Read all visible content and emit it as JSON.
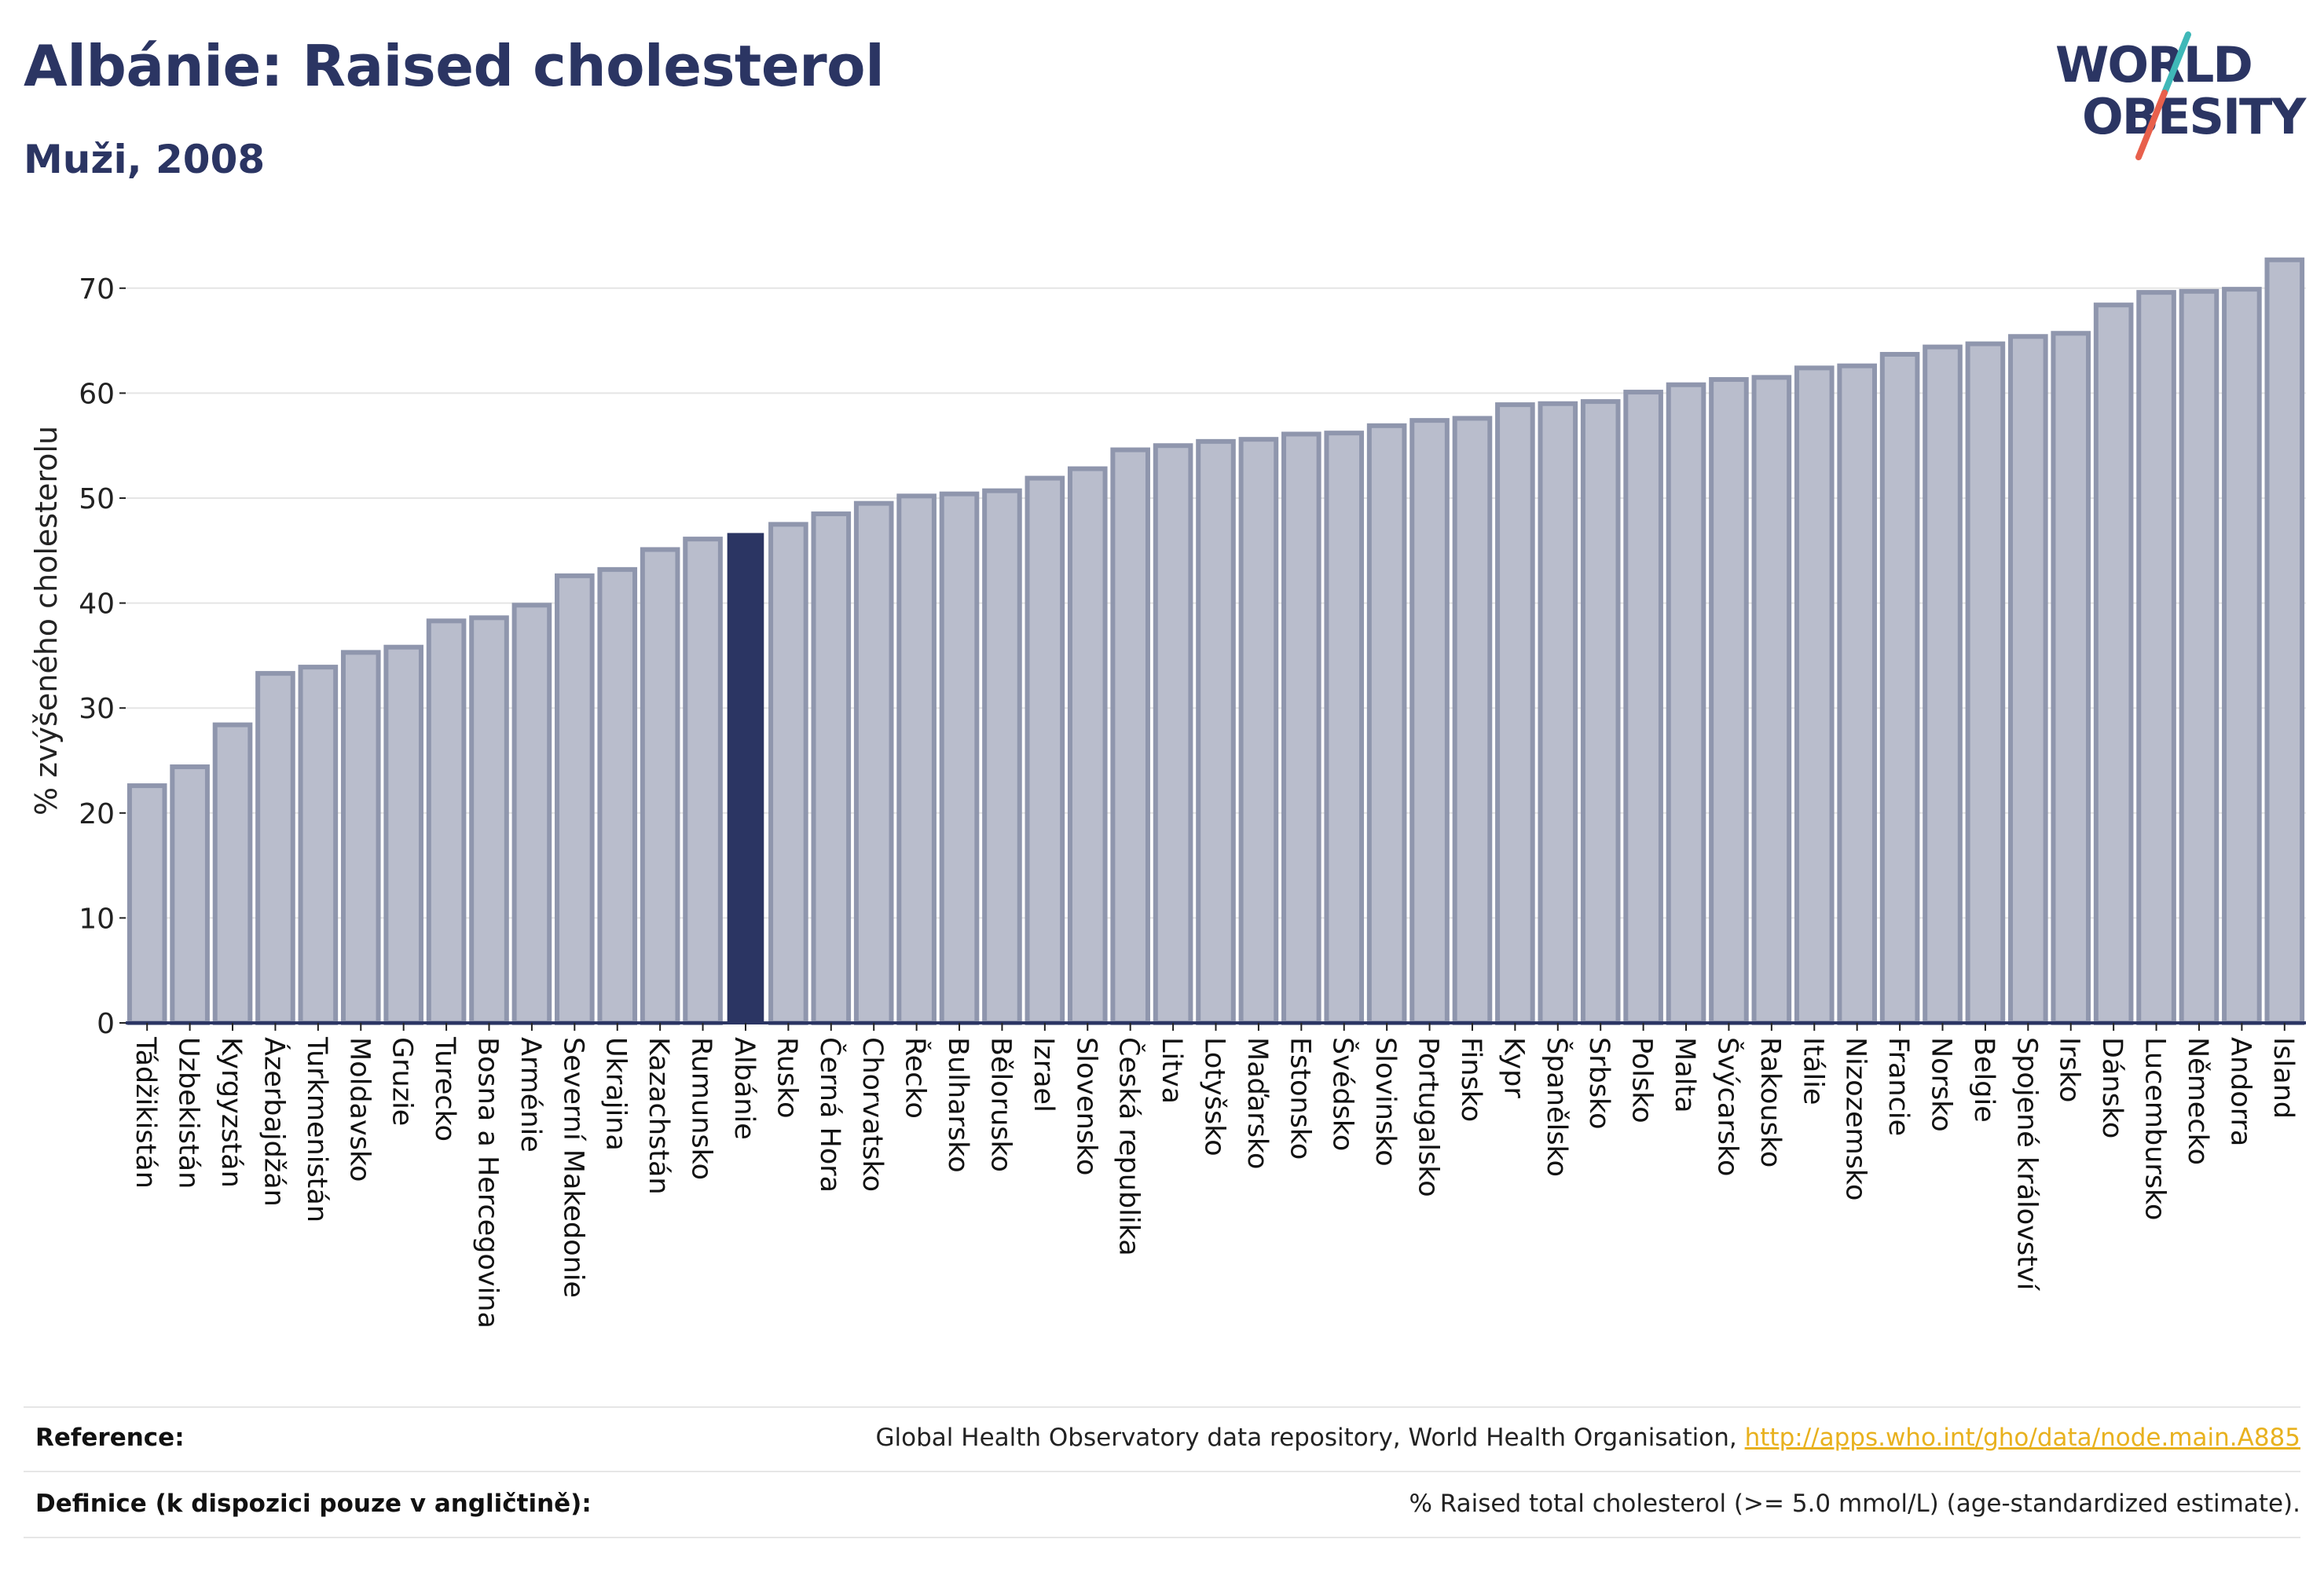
{
  "header": {
    "title": "Albánie: Raised cholesterol",
    "subtitle": "Muži, 2008"
  },
  "logo": {
    "line1": "WORLD",
    "line2": "OBESITY",
    "colors": {
      "text": "#2b3563",
      "slash_red": "#e8604c",
      "slash_teal": "#3fb8b8"
    }
  },
  "chart_data": {
    "type": "bar",
    "ylabel": "% zvýšeného cholesterolu",
    "ylim": [
      0,
      75
    ],
    "yticks": [
      0,
      10,
      20,
      30,
      40,
      50,
      60,
      70
    ],
    "grid": true,
    "highlight": "Albánie",
    "colors": {
      "bar": "#b9bdcc",
      "bar_edge": "#8f96ad",
      "highlight": "#2b3563",
      "grid": "#e5e5e5",
      "axis": "#2b3563"
    },
    "categories": [
      "Tádžikistán",
      "Uzbekistán",
      "Kyrgyzstán",
      "Ázerbajdžán",
      "Turkmenistán",
      "Moldavsko",
      "Gruzie",
      "Turecko",
      "Bosna a Hercegovina",
      "Arménie",
      "Severní Makedonie",
      "Ukrajina",
      "Kazachstán",
      "Rumunsko",
      "Albánie",
      "Rusko",
      "Černá Hora",
      "Chorvatsko",
      "Řecko",
      "Bulharsko",
      "Bělorusko",
      "Izrael",
      "Slovensko",
      "Česká republika",
      "Litva",
      "Lotyšsko",
      "Maďarsko",
      "Estonsko",
      "Švédsko",
      "Slovinsko",
      "Portugalsko",
      "Finsko",
      "Kypr",
      "Španělsko",
      "Srbsko",
      "Polsko",
      "Malta",
      "Švýcarsko",
      "Rakousko",
      "Itálie",
      "Nizozemsko",
      "Francie",
      "Norsko",
      "Belgie",
      "Spojené království",
      "Irsko",
      "Dánsko",
      "Lucembursko",
      "Německo",
      "Andorra",
      "Island"
    ],
    "values": [
      22.6,
      24.4,
      28.4,
      33.3,
      33.9,
      35.3,
      35.8,
      38.3,
      38.6,
      39.8,
      42.6,
      43.2,
      45.1,
      46.1,
      46.6,
      47.5,
      48.5,
      49.5,
      50.2,
      50.4,
      50.7,
      51.9,
      52.8,
      54.6,
      55.0,
      55.4,
      55.6,
      56.1,
      56.2,
      56.9,
      57.4,
      57.6,
      58.9,
      59.0,
      59.2,
      60.1,
      60.8,
      61.3,
      61.5,
      62.4,
      62.6,
      63.7,
      64.4,
      64.7,
      65.4,
      65.7,
      68.4,
      69.6,
      69.7,
      69.9,
      72.7
    ]
  },
  "footer": {
    "reference_label": "Reference:",
    "reference_text": "Global Health Observatory data repository, World Health Organisation,",
    "reference_link": "http://apps.who.int/gho/data/node.main.A885",
    "definition_label": "Definice (k dispozici pouze v angličtině):",
    "definition_text": "% Raised total cholesterol (>= 5.0 mmol/L) (age-standardized estimate)."
  }
}
